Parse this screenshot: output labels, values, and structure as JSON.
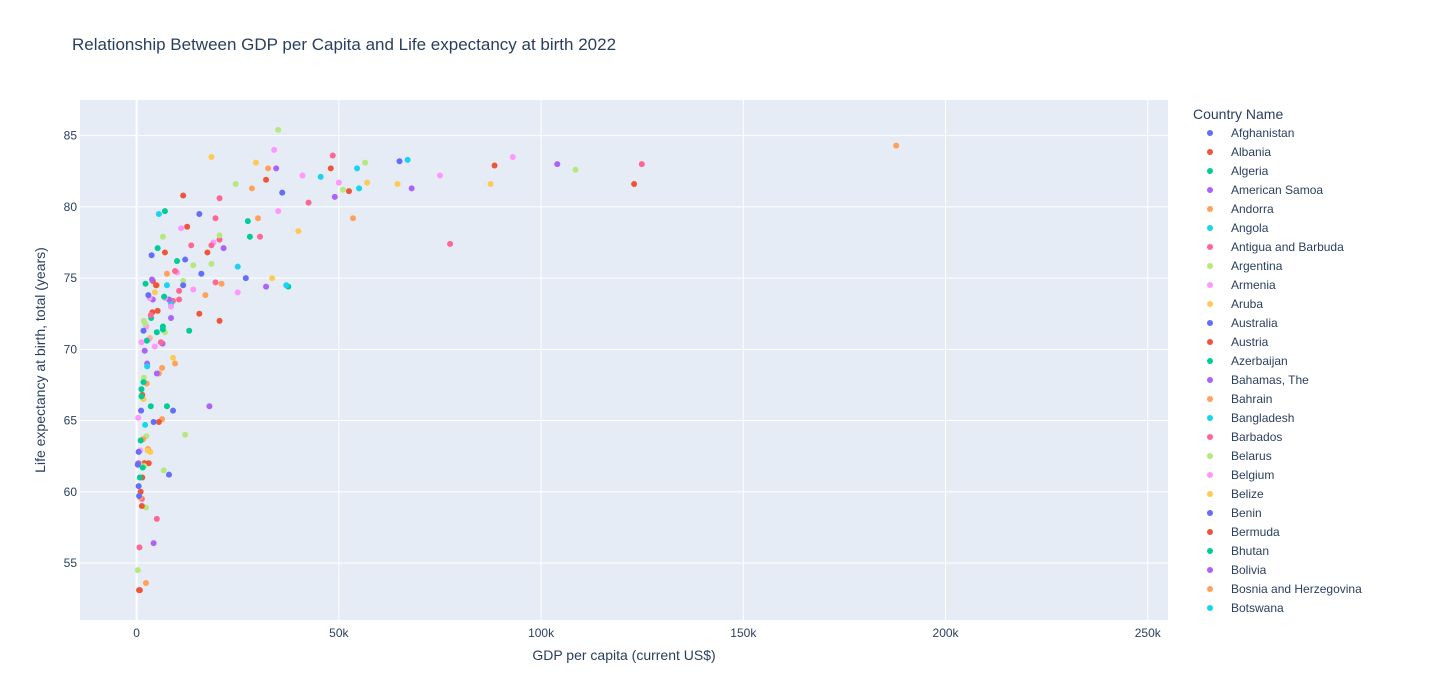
{
  "chart_data": {
    "type": "scatter",
    "title": "Relationship Between GDP per Capita and Life expectancy at birth 2022",
    "xlabel": "GDP per capita (current US$)",
    "ylabel": "Life expectancy at birth, total (years)",
    "xlim": [
      -14000,
      255000
    ],
    "ylim": [
      51,
      87.5
    ],
    "xticks": [
      0,
      50000,
      100000,
      150000,
      200000,
      250000
    ],
    "xtick_labels": [
      "0",
      "50k",
      "100k",
      "150k",
      "200k",
      "250k"
    ],
    "yticks": [
      55,
      60,
      65,
      70,
      75,
      80,
      85
    ],
    "ytick_labels": [
      "55",
      "60",
      "65",
      "70",
      "75",
      "80",
      "85"
    ],
    "grid": true,
    "legend": {
      "title": "Country Name",
      "position": "right",
      "entries": [
        "Afghanistan",
        "Albania",
        "Algeria",
        "American Samoa",
        "Andorra",
        "Angola",
        "Antigua and Barbuda",
        "Argentina",
        "Armenia",
        "Aruba",
        "Australia",
        "Austria",
        "Azerbaijan",
        "Bahamas, The",
        "Bahrain",
        "Bangladesh",
        "Barbados",
        "Belarus",
        "Belgium",
        "Belize",
        "Benin",
        "Bermuda",
        "Bhutan",
        "Bolivia",
        "Bosnia and Herzegovina",
        "Botswana"
      ]
    },
    "colors": [
      "#636efa",
      "#EF553B",
      "#00cc96",
      "#ab63fa",
      "#FFA15A",
      "#19d3f3",
      "#FF6692",
      "#B6E880",
      "#FF97FF",
      "#FECB52"
    ],
    "points": [
      [
        187800,
        84.3,
        4
      ],
      [
        124900,
        83.0,
        6
      ],
      [
        123000,
        81.6,
        1
      ],
      [
        108500,
        82.6,
        7
      ],
      [
        104000,
        83.0,
        3
      ],
      [
        93000,
        83.5,
        8
      ],
      [
        88500,
        82.9,
        1
      ],
      [
        87500,
        81.6,
        9
      ],
      [
        77500,
        77.4,
        6
      ],
      [
        75000,
        82.2,
        8
      ],
      [
        68000,
        81.3,
        3
      ],
      [
        67000,
        83.3,
        5
      ],
      [
        65000,
        83.2,
        0
      ],
      [
        64500,
        81.6,
        9
      ],
      [
        57000,
        81.7,
        9
      ],
      [
        56500,
        83.1,
        7
      ],
      [
        55000,
        81.3,
        5
      ],
      [
        54500,
        82.7,
        5
      ],
      [
        53500,
        79.2,
        4
      ],
      [
        52500,
        81.1,
        1
      ],
      [
        51000,
        81.2,
        7
      ],
      [
        50000,
        81.7,
        8
      ],
      [
        49000,
        80.7,
        3
      ],
      [
        48500,
        83.6,
        6
      ],
      [
        48000,
        82.7,
        1
      ],
      [
        45500,
        82.1,
        5
      ],
      [
        42500,
        80.3,
        6
      ],
      [
        41000,
        82.2,
        8
      ],
      [
        40000,
        78.3,
        9
      ],
      [
        37500,
        74.4,
        2
      ],
      [
        37000,
        74.5,
        5
      ],
      [
        36000,
        81.0,
        0
      ],
      [
        35000,
        79.7,
        8
      ],
      [
        35000,
        85.4,
        7
      ],
      [
        34500,
        82.7,
        3
      ],
      [
        34000,
        84.0,
        8
      ],
      [
        33500,
        75.0,
        9
      ],
      [
        32500,
        82.7,
        4
      ],
      [
        32000,
        81.9,
        1
      ],
      [
        32000,
        74.4,
        3
      ],
      [
        30500,
        77.9,
        6
      ],
      [
        30000,
        79.2,
        4
      ],
      [
        29500,
        83.1,
        9
      ],
      [
        28500,
        81.3,
        4
      ],
      [
        28000,
        77.9,
        2
      ],
      [
        27500,
        79.0,
        2
      ],
      [
        27000,
        75.0,
        0
      ],
      [
        25000,
        75.8,
        5
      ],
      [
        25000,
        74.0,
        8
      ],
      [
        24500,
        81.6,
        7
      ],
      [
        21500,
        77.1,
        3
      ],
      [
        21000,
        74.6,
        4
      ],
      [
        20500,
        80.6,
        6
      ],
      [
        20500,
        72.0,
        1
      ],
      [
        20500,
        77.7,
        6
      ],
      [
        20500,
        78.0,
        7
      ],
      [
        19500,
        79.2,
        6
      ],
      [
        19500,
        74.7,
        6
      ],
      [
        19000,
        77.5,
        8
      ],
      [
        18500,
        83.5,
        9
      ],
      [
        18500,
        77.3,
        6
      ],
      [
        18500,
        76.0,
        7
      ],
      [
        18000,
        66.0,
        3
      ],
      [
        17500,
        76.8,
        1
      ],
      [
        17000,
        73.8,
        4
      ],
      [
        16000,
        75.3,
        0
      ],
      [
        15500,
        79.5,
        0
      ],
      [
        15500,
        72.5,
        1
      ],
      [
        14000,
        75.9,
        7
      ],
      [
        14000,
        74.2,
        8
      ],
      [
        13500,
        77.3,
        6
      ],
      [
        13000,
        71.3,
        2
      ],
      [
        12500,
        78.6,
        1
      ],
      [
        12000,
        76.3,
        0
      ],
      [
        12000,
        64.0,
        7
      ],
      [
        11500,
        80.8,
        1
      ],
      [
        11500,
        74.8,
        7
      ],
      [
        11500,
        74.5,
        0
      ],
      [
        11000,
        78.5,
        8
      ],
      [
        10500,
        73.5,
        6
      ],
      [
        10500,
        74.1,
        6
      ],
      [
        10000,
        76.2,
        2
      ],
      [
        10000,
        75.4,
        8
      ],
      [
        9500,
        75.5,
        6
      ],
      [
        9500,
        69.0,
        4
      ],
      [
        9000,
        65.7,
        0
      ],
      [
        9000,
        69.4,
        9
      ],
      [
        9000,
        73.4,
        6
      ],
      [
        8500,
        73.2,
        5
      ],
      [
        8500,
        72.2,
        3
      ],
      [
        8500,
        73.0,
        8
      ],
      [
        8000,
        61.2,
        0
      ],
      [
        8000,
        73.5,
        3
      ],
      [
        7500,
        75.3,
        4
      ],
      [
        7500,
        66.0,
        2
      ],
      [
        7500,
        74.5,
        5
      ],
      [
        7000,
        79.7,
        2
      ],
      [
        7000,
        76.8,
        1
      ],
      [
        7000,
        73.6,
        8
      ],
      [
        7000,
        71.2,
        7
      ],
      [
        6800,
        73.7,
        2
      ],
      [
        6700,
        61.5,
        7
      ],
      [
        6500,
        77.9,
        7
      ],
      [
        6500,
        71.6,
        2
      ],
      [
        6500,
        71.4,
        2
      ],
      [
        6400,
        70.4,
        3
      ],
      [
        6300,
        68.7,
        4
      ],
      [
        6300,
        65.1,
        4
      ],
      [
        6000,
        70.5,
        6
      ],
      [
        5500,
        79.5,
        5
      ],
      [
        5500,
        68.3,
        4
      ],
      [
        5500,
        64.9,
        1
      ],
      [
        5200,
        77.1,
        2
      ],
      [
        5200,
        72.7,
        1
      ],
      [
        5000,
        74.5,
        4
      ],
      [
        5000,
        71.2,
        2
      ],
      [
        5000,
        68.3,
        3
      ],
      [
        5000,
        58.1,
        6
      ],
      [
        4800,
        74.5,
        1
      ],
      [
        4500,
        74.0,
        9
      ],
      [
        4500,
        70.2,
        8
      ],
      [
        4200,
        56.4,
        3
      ],
      [
        4200,
        64.9,
        0
      ],
      [
        4000,
        74.8,
        1
      ],
      [
        4000,
        73.5,
        3
      ],
      [
        3900,
        72.6,
        1
      ],
      [
        3800,
        74.9,
        3
      ],
      [
        3700,
        76.6,
        0
      ],
      [
        3600,
        72.2,
        2
      ],
      [
        3500,
        72.4,
        6
      ],
      [
        3500,
        66.0,
        2
      ],
      [
        3400,
        62.8,
        9
      ],
      [
        3300,
        70.8,
        9
      ],
      [
        3200,
        73.6,
        8
      ],
      [
        3000,
        62.0,
        1
      ],
      [
        3000,
        70.7,
        8
      ],
      [
        2900,
        73.8,
        0
      ],
      [
        2800,
        63.0,
        4
      ],
      [
        2700,
        62.9,
        9
      ],
      [
        2600,
        69.0,
        3
      ],
      [
        2600,
        68.8,
        5
      ],
      [
        2500,
        67.6,
        4
      ],
      [
        2500,
        70.6,
        2
      ],
      [
        2400,
        71.6,
        8
      ],
      [
        2400,
        63.9,
        7
      ],
      [
        2300,
        53.6,
        4
      ],
      [
        2300,
        58.9,
        7
      ],
      [
        2200,
        74.6,
        2
      ],
      [
        2100,
        71.8,
        7
      ],
      [
        2100,
        64.7,
        5
      ],
      [
        2000,
        69.9,
        3
      ],
      [
        2000,
        62.0,
        1
      ],
      [
        1900,
        62.0,
        1
      ],
      [
        1900,
        61.8,
        7
      ],
      [
        1800,
        72.0,
        7
      ],
      [
        1800,
        68.0,
        7
      ],
      [
        1700,
        71.3,
        0
      ],
      [
        1700,
        67.7,
        2
      ],
      [
        1700,
        66.5,
        9
      ],
      [
        1600,
        63.7,
        4
      ],
      [
        1500,
        61.7,
        2
      ],
      [
        1400,
        66.8,
        1
      ],
      [
        1400,
        61.0,
        1
      ],
      [
        1300,
        59.5,
        6
      ],
      [
        1300,
        59.0,
        1
      ],
      [
        1200,
        70.5,
        8
      ],
      [
        1200,
        67.2,
        2
      ],
      [
        1200,
        66.7,
        2
      ],
      [
        1100,
        65.7,
        0
      ],
      [
        1000,
        63.6,
        2
      ],
      [
        1000,
        60.0,
        1
      ],
      [
        900,
        62.9,
        8
      ],
      [
        900,
        59.6,
        4
      ],
      [
        800,
        61.0,
        2
      ],
      [
        800,
        53.1,
        1
      ],
      [
        700,
        62.0,
        9
      ],
      [
        700,
        56.1,
        6
      ],
      [
        600,
        59.7,
        0
      ],
      [
        600,
        53.1,
        1
      ],
      [
        500,
        62.8,
        0
      ],
      [
        500,
        60.4,
        0
      ],
      [
        400,
        65.2,
        8
      ],
      [
        400,
        62.0,
        3
      ],
      [
        300,
        54.5,
        7
      ],
      [
        300,
        61.9,
        0
      ]
    ]
  }
}
